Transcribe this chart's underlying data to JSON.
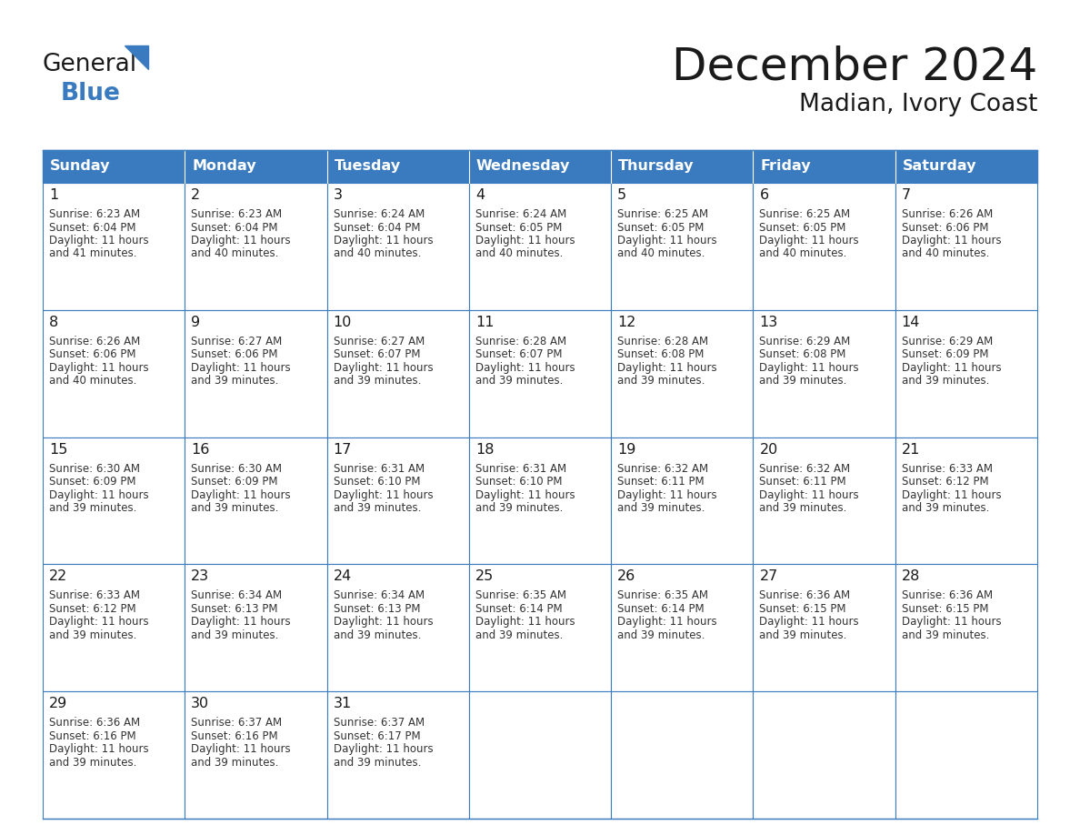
{
  "title": "December 2024",
  "subtitle": "Madian, Ivory Coast",
  "header_bg": "#3a7abf",
  "header_text": "#ffffff",
  "border_color": "#3a7abf",
  "text_color": "#333333",
  "day_num_color": "#1a1a1a",
  "days_of_week": [
    "Sunday",
    "Monday",
    "Tuesday",
    "Wednesday",
    "Thursday",
    "Friday",
    "Saturday"
  ],
  "weeks": [
    [
      {
        "day": 1,
        "sunrise": "6:23 AM",
        "sunset": "6:04 PM",
        "daylight_line1": "11 hours",
        "daylight_line2": "and 41 minutes."
      },
      {
        "day": 2,
        "sunrise": "6:23 AM",
        "sunset": "6:04 PM",
        "daylight_line1": "11 hours",
        "daylight_line2": "and 40 minutes."
      },
      {
        "day": 3,
        "sunrise": "6:24 AM",
        "sunset": "6:04 PM",
        "daylight_line1": "11 hours",
        "daylight_line2": "and 40 minutes."
      },
      {
        "day": 4,
        "sunrise": "6:24 AM",
        "sunset": "6:05 PM",
        "daylight_line1": "11 hours",
        "daylight_line2": "and 40 minutes."
      },
      {
        "day": 5,
        "sunrise": "6:25 AM",
        "sunset": "6:05 PM",
        "daylight_line1": "11 hours",
        "daylight_line2": "and 40 minutes."
      },
      {
        "day": 6,
        "sunrise": "6:25 AM",
        "sunset": "6:05 PM",
        "daylight_line1": "11 hours",
        "daylight_line2": "and 40 minutes."
      },
      {
        "day": 7,
        "sunrise": "6:26 AM",
        "sunset": "6:06 PM",
        "daylight_line1": "11 hours",
        "daylight_line2": "and 40 minutes."
      }
    ],
    [
      {
        "day": 8,
        "sunrise": "6:26 AM",
        "sunset": "6:06 PM",
        "daylight_line1": "11 hours",
        "daylight_line2": "and 40 minutes."
      },
      {
        "day": 9,
        "sunrise": "6:27 AM",
        "sunset": "6:06 PM",
        "daylight_line1": "11 hours",
        "daylight_line2": "and 39 minutes."
      },
      {
        "day": 10,
        "sunrise": "6:27 AM",
        "sunset": "6:07 PM",
        "daylight_line1": "11 hours",
        "daylight_line2": "and 39 minutes."
      },
      {
        "day": 11,
        "sunrise": "6:28 AM",
        "sunset": "6:07 PM",
        "daylight_line1": "11 hours",
        "daylight_line2": "and 39 minutes."
      },
      {
        "day": 12,
        "sunrise": "6:28 AM",
        "sunset": "6:08 PM",
        "daylight_line1": "11 hours",
        "daylight_line2": "and 39 minutes."
      },
      {
        "day": 13,
        "sunrise": "6:29 AM",
        "sunset": "6:08 PM",
        "daylight_line1": "11 hours",
        "daylight_line2": "and 39 minutes."
      },
      {
        "day": 14,
        "sunrise": "6:29 AM",
        "sunset": "6:09 PM",
        "daylight_line1": "11 hours",
        "daylight_line2": "and 39 minutes."
      }
    ],
    [
      {
        "day": 15,
        "sunrise": "6:30 AM",
        "sunset": "6:09 PM",
        "daylight_line1": "11 hours",
        "daylight_line2": "and 39 minutes."
      },
      {
        "day": 16,
        "sunrise": "6:30 AM",
        "sunset": "6:09 PM",
        "daylight_line1": "11 hours",
        "daylight_line2": "and 39 minutes."
      },
      {
        "day": 17,
        "sunrise": "6:31 AM",
        "sunset": "6:10 PM",
        "daylight_line1": "11 hours",
        "daylight_line2": "and 39 minutes."
      },
      {
        "day": 18,
        "sunrise": "6:31 AM",
        "sunset": "6:10 PM",
        "daylight_line1": "11 hours",
        "daylight_line2": "and 39 minutes."
      },
      {
        "day": 19,
        "sunrise": "6:32 AM",
        "sunset": "6:11 PM",
        "daylight_line1": "11 hours",
        "daylight_line2": "and 39 minutes."
      },
      {
        "day": 20,
        "sunrise": "6:32 AM",
        "sunset": "6:11 PM",
        "daylight_line1": "11 hours",
        "daylight_line2": "and 39 minutes."
      },
      {
        "day": 21,
        "sunrise": "6:33 AM",
        "sunset": "6:12 PM",
        "daylight_line1": "11 hours",
        "daylight_line2": "and 39 minutes."
      }
    ],
    [
      {
        "day": 22,
        "sunrise": "6:33 AM",
        "sunset": "6:12 PM",
        "daylight_line1": "11 hours",
        "daylight_line2": "and 39 minutes."
      },
      {
        "day": 23,
        "sunrise": "6:34 AM",
        "sunset": "6:13 PM",
        "daylight_line1": "11 hours",
        "daylight_line2": "and 39 minutes."
      },
      {
        "day": 24,
        "sunrise": "6:34 AM",
        "sunset": "6:13 PM",
        "daylight_line1": "11 hours",
        "daylight_line2": "and 39 minutes."
      },
      {
        "day": 25,
        "sunrise": "6:35 AM",
        "sunset": "6:14 PM",
        "daylight_line1": "11 hours",
        "daylight_line2": "and 39 minutes."
      },
      {
        "day": 26,
        "sunrise": "6:35 AM",
        "sunset": "6:14 PM",
        "daylight_line1": "11 hours",
        "daylight_line2": "and 39 minutes."
      },
      {
        "day": 27,
        "sunrise": "6:36 AM",
        "sunset": "6:15 PM",
        "daylight_line1": "11 hours",
        "daylight_line2": "and 39 minutes."
      },
      {
        "day": 28,
        "sunrise": "6:36 AM",
        "sunset": "6:15 PM",
        "daylight_line1": "11 hours",
        "daylight_line2": "and 39 minutes."
      }
    ],
    [
      {
        "day": 29,
        "sunrise": "6:36 AM",
        "sunset": "6:16 PM",
        "daylight_line1": "11 hours",
        "daylight_line2": "and 39 minutes."
      },
      {
        "day": 30,
        "sunrise": "6:37 AM",
        "sunset": "6:16 PM",
        "daylight_line1": "11 hours",
        "daylight_line2": "and 39 minutes."
      },
      {
        "day": 31,
        "sunrise": "6:37 AM",
        "sunset": "6:17 PM",
        "daylight_line1": "11 hours",
        "daylight_line2": "and 39 minutes."
      },
      null,
      null,
      null,
      null
    ]
  ],
  "logo_general_color": "#1a1a1a",
  "logo_blue_color": "#3a7abf",
  "fig_bg": "#ffffff",
  "fig_width": 11.88,
  "fig_height": 9.18,
  "dpi": 100
}
